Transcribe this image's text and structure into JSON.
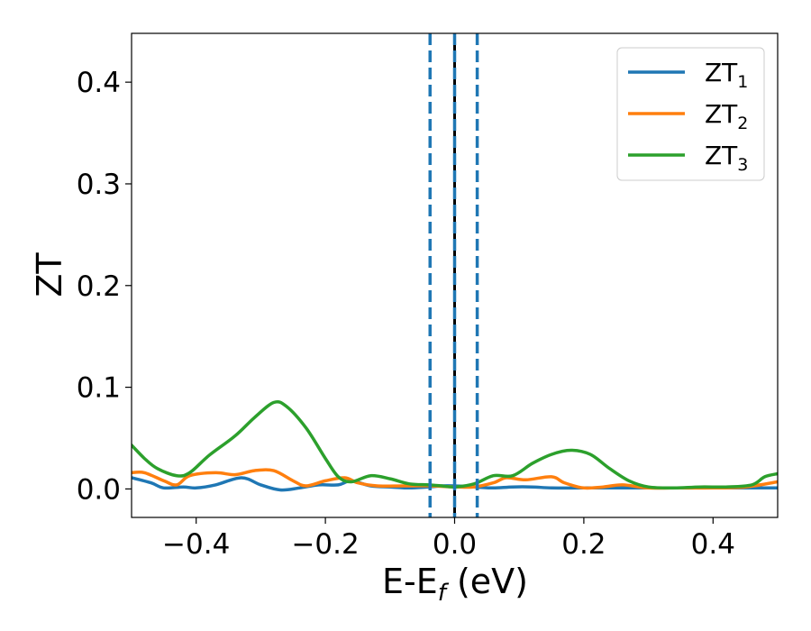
{
  "chart_data": {
    "type": "line",
    "title": "",
    "xlabel": "E-E",
    "xlabel_sub": "f",
    "xlabel_unit": " (eV)",
    "ylabel": "ZT",
    "xlim": [
      -0.5,
      0.5
    ],
    "ylim": [
      -0.028,
      0.448
    ],
    "xticks": [
      -0.4,
      -0.2,
      0.0,
      0.2,
      0.4
    ],
    "xtick_labels": [
      "−0.4",
      "−0.2",
      "0.0",
      "0.2",
      "0.4"
    ],
    "yticks": [
      0.0,
      0.1,
      0.2,
      0.3,
      0.4
    ],
    "ytick_labels": [
      "0.0",
      "0.1",
      "0.2",
      "0.3",
      "0.4"
    ],
    "grid": false,
    "legend_position": "top-right",
    "vertical_lines": [
      {
        "x": -0.038,
        "style": "dashed",
        "color": "#1f77b4"
      },
      {
        "x": 0.0,
        "style": "solid",
        "color": "#000000"
      },
      {
        "x": 0.0,
        "style": "dashed",
        "color": "#1f77b4"
      },
      {
        "x": 0.035,
        "style": "dashed",
        "color": "#1f77b4"
      }
    ],
    "series": [
      {
        "name": "ZT",
        "sub": "1",
        "color": "#1f77b4",
        "points": [
          [
            -0.5,
            0.011
          ],
          [
            -0.47,
            0.006
          ],
          [
            -0.45,
            0.001
          ],
          [
            -0.42,
            0.002
          ],
          [
            -0.4,
            0.001
          ],
          [
            -0.37,
            0.004
          ],
          [
            -0.33,
            0.011
          ],
          [
            -0.3,
            0.004
          ],
          [
            -0.27,
            -0.001
          ],
          [
            -0.24,
            0.001
          ],
          [
            -0.21,
            0.004
          ],
          [
            -0.18,
            0.004
          ],
          [
            -0.16,
            0.008
          ],
          [
            -0.13,
            0.003
          ],
          [
            -0.1,
            0.002
          ],
          [
            -0.07,
            0.001
          ],
          [
            -0.04,
            0.002
          ],
          [
            -0.02,
            0.003
          ],
          [
            0.0,
            0.003
          ],
          [
            0.03,
            0.002
          ],
          [
            0.06,
            0.001
          ],
          [
            0.09,
            0.002
          ],
          [
            0.12,
            0.002
          ],
          [
            0.15,
            0.001
          ],
          [
            0.2,
            0.001
          ],
          [
            0.3,
            0.001
          ],
          [
            0.4,
            0.001
          ],
          [
            0.5,
            0.001
          ]
        ]
      },
      {
        "name": "ZT",
        "sub": "2",
        "color": "#ff7f0e",
        "points": [
          [
            -0.5,
            0.016
          ],
          [
            -0.48,
            0.016
          ],
          [
            -0.45,
            0.008
          ],
          [
            -0.43,
            0.004
          ],
          [
            -0.41,
            0.013
          ],
          [
            -0.37,
            0.016
          ],
          [
            -0.34,
            0.014
          ],
          [
            -0.31,
            0.018
          ],
          [
            -0.28,
            0.018
          ],
          [
            -0.25,
            0.008
          ],
          [
            -0.23,
            0.003
          ],
          [
            -0.2,
            0.008
          ],
          [
            -0.17,
            0.011
          ],
          [
            -0.15,
            0.006
          ],
          [
            -0.12,
            0.003
          ],
          [
            -0.08,
            0.003
          ],
          [
            -0.04,
            0.003
          ],
          [
            0.0,
            0.002
          ],
          [
            0.03,
            0.002
          ],
          [
            0.06,
            0.006
          ],
          [
            0.08,
            0.011
          ],
          [
            0.11,
            0.009
          ],
          [
            0.15,
            0.012
          ],
          [
            0.17,
            0.006
          ],
          [
            0.2,
            0.001
          ],
          [
            0.23,
            0.002
          ],
          [
            0.26,
            0.004
          ],
          [
            0.3,
            0.001
          ],
          [
            0.35,
            0.001
          ],
          [
            0.4,
            0.001
          ],
          [
            0.45,
            0.002
          ],
          [
            0.5,
            0.007
          ]
        ]
      },
      {
        "name": "ZT",
        "sub": "3",
        "color": "#2ca02c",
        "points": [
          [
            -0.5,
            0.043
          ],
          [
            -0.48,
            0.03
          ],
          [
            -0.46,
            0.02
          ],
          [
            -0.43,
            0.013
          ],
          [
            -0.41,
            0.016
          ],
          [
            -0.38,
            0.033
          ],
          [
            -0.34,
            0.052
          ],
          [
            -0.31,
            0.07
          ],
          [
            -0.28,
            0.085
          ],
          [
            -0.26,
            0.081
          ],
          [
            -0.23,
            0.06
          ],
          [
            -0.2,
            0.03
          ],
          [
            -0.18,
            0.012
          ],
          [
            -0.16,
            0.007
          ],
          [
            -0.13,
            0.013
          ],
          [
            -0.1,
            0.01
          ],
          [
            -0.07,
            0.005
          ],
          [
            -0.04,
            0.004
          ],
          [
            -0.02,
            0.003
          ],
          [
            0.0,
            0.002
          ],
          [
            0.03,
            0.005
          ],
          [
            0.06,
            0.013
          ],
          [
            0.09,
            0.013
          ],
          [
            0.12,
            0.025
          ],
          [
            0.15,
            0.034
          ],
          [
            0.18,
            0.038
          ],
          [
            0.21,
            0.034
          ],
          [
            0.24,
            0.02
          ],
          [
            0.27,
            0.008
          ],
          [
            0.3,
            0.002
          ],
          [
            0.34,
            0.001
          ],
          [
            0.38,
            0.002
          ],
          [
            0.42,
            0.002
          ],
          [
            0.46,
            0.004
          ],
          [
            0.48,
            0.012
          ],
          [
            0.5,
            0.015
          ]
        ]
      }
    ]
  }
}
